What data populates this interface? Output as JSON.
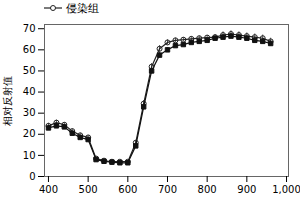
{
  "chart_data": {
    "type": "line",
    "y_label": "相对反射值",
    "xlim": [
      390,
      1005
    ],
    "ylim": [
      0,
      72
    ],
    "xticks": [
      400,
      500,
      600,
      700,
      800,
      900,
      1000
    ],
    "yticks": [
      0,
      10,
      20,
      30,
      40,
      50,
      60,
      70
    ],
    "legend": "upper left",
    "x": [
      400,
      420,
      440,
      460,
      480,
      500,
      520,
      540,
      560,
      580,
      600,
      620,
      640,
      660,
      680,
      700,
      720,
      740,
      760,
      780,
      800,
      820,
      840,
      860,
      880,
      900,
      920,
      940,
      960
    ],
    "series": [
      {
        "name": "侵染组",
        "color": "#222222",
        "marker": "open_circle",
        "values": [
          24.0,
          25.5,
          24.5,
          21.5,
          19.5,
          18.5,
          8.5,
          7.5,
          7.0,
          7.0,
          7.0,
          16.0,
          34.5,
          52.0,
          60.5,
          63.5,
          64.5,
          64.8,
          65.2,
          65.5,
          65.8,
          66.0,
          67.0,
          67.5,
          67.0,
          66.5,
          66.0,
          65.5,
          64.0
        ],
        "yerr": [
          1.2,
          1.2,
          1.0,
          1.0,
          1.0,
          0.9,
          0.8,
          0.7,
          0.6,
          0.6,
          0.6,
          1.0,
          1.5,
          1.5,
          1.5,
          1.2,
          1.0,
          1.0,
          1.0,
          1.0,
          1.0,
          1.2,
          1.5,
          1.5,
          1.5,
          1.5,
          1.5,
          1.5,
          1.5
        ]
      },
      {
        "color": "#111111",
        "marker": "square",
        "values": [
          23.0,
          24.0,
          23.5,
          20.5,
          18.5,
          17.5,
          8.0,
          7.2,
          6.8,
          6.5,
          6.5,
          14.5,
          33.0,
          50.0,
          57.5,
          60.0,
          62.0,
          62.5,
          63.5,
          64.0,
          64.5,
          65.5,
          66.0,
          66.5,
          66.0,
          65.5,
          64.5,
          64.0,
          63.0
        ],
        "yerr": [
          1.0,
          0.8,
          0.8,
          0.8,
          0.8,
          0.7,
          0.7,
          0.6,
          0.5,
          0.5,
          0.5,
          0.9,
          1.3,
          1.3,
          1.3,
          1.0,
          0.9,
          0.9,
          0.9,
          0.9,
          0.9,
          1.0,
          1.2,
          1.2,
          1.2,
          1.2,
          1.2,
          1.2,
          1.2
        ]
      }
    ]
  }
}
